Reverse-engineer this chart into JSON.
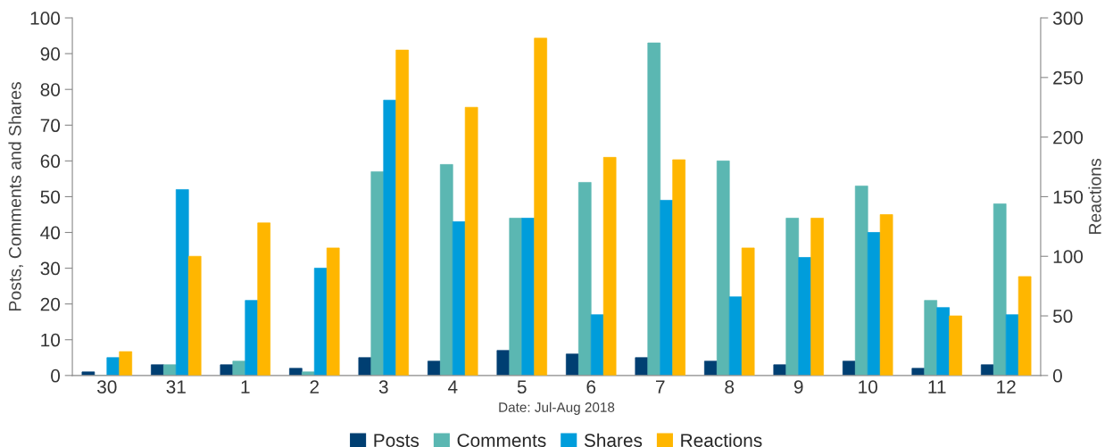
{
  "chart_data": {
    "type": "bar",
    "xlabel": "Date: Jul-Aug 2018",
    "ylabel": "Posts, Comments and Shares",
    "y2label": "Reactions",
    "categories": [
      "30",
      "31",
      "1",
      "2",
      "3",
      "4",
      "5",
      "6",
      "7",
      "8",
      "9",
      "10",
      "11",
      "12"
    ],
    "series": [
      {
        "name": "Posts",
        "color": "#003f72",
        "values": [
          1,
          3,
          3,
          2,
          5,
          4,
          7,
          6,
          5,
          4,
          3,
          4,
          2,
          3
        ]
      },
      {
        "name": "Comments",
        "color": "#5bb7b2",
        "values": [
          0,
          3,
          4,
          1,
          57,
          59,
          44,
          54,
          93,
          60,
          44,
          53,
          21,
          48
        ]
      },
      {
        "name": "Shares",
        "color": "#009ddb",
        "values": [
          5,
          52,
          21,
          30,
          77,
          43,
          44,
          17,
          49,
          22,
          33,
          40,
          19,
          17
        ]
      },
      {
        "name": "Reactions",
        "color": "#ffb600",
        "axis": "y2",
        "values": [
          20,
          100,
          128,
          107,
          273,
          225,
          283,
          183,
          181,
          107,
          132,
          135,
          50,
          83
        ]
      }
    ],
    "ylim": [
      0,
      100
    ],
    "yticks": [
      0,
      10,
      20,
      30,
      40,
      50,
      60,
      70,
      80,
      90,
      100
    ],
    "y2lim": [
      0,
      300
    ],
    "y2ticks": [
      0,
      50,
      100,
      150,
      200,
      250,
      300
    ],
    "grid": false,
    "legend": "bottom"
  }
}
